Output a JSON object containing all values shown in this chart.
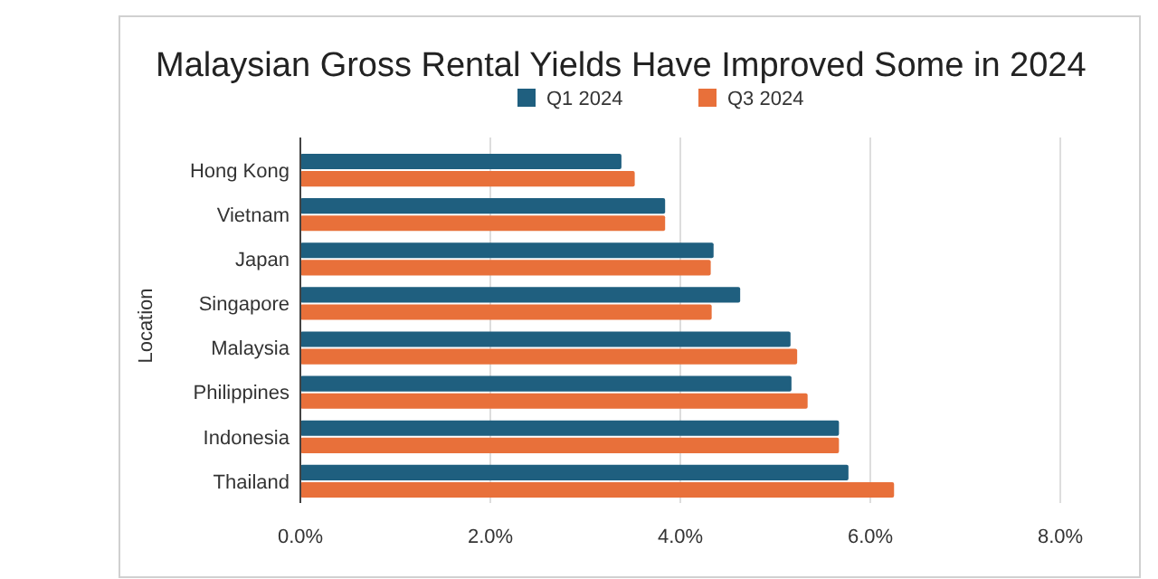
{
  "chart_data": {
    "type": "bar",
    "orientation": "horizontal",
    "title": "Malaysian Gross Rental Yields Have Improved Some in 2024",
    "ylabel": "Location",
    "categories": [
      "Hong Kong",
      "Vietnam",
      "Japan",
      "Singapore",
      "Malaysia",
      "Philippines",
      "Indonesia",
      "Thailand"
    ],
    "series": [
      {
        "name": "Q1 2024",
        "color": "#1f5f7f",
        "values": [
          3.38,
          3.84,
          4.35,
          4.63,
          5.16,
          5.17,
          5.67,
          5.77
        ]
      },
      {
        "name": "Q3 2024",
        "color": "#e8703a",
        "values": [
          3.52,
          3.84,
          4.32,
          4.33,
          5.23,
          5.34,
          5.67,
          6.25
        ]
      }
    ],
    "xlim": [
      0,
      8
    ],
    "xticks": [
      {
        "value": 0,
        "label": "0.0%"
      },
      {
        "value": 2,
        "label": "2.0%"
      },
      {
        "value": 4,
        "label": "4.0%"
      },
      {
        "value": 6,
        "label": "6.0%"
      },
      {
        "value": 8,
        "label": "8.0%"
      }
    ],
    "grid": "x",
    "legend": "top"
  }
}
